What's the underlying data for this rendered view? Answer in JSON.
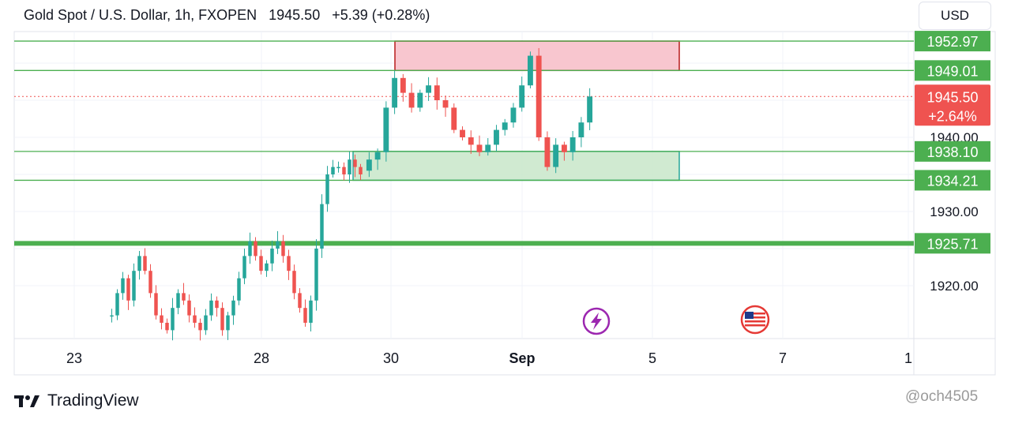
{
  "header": {
    "symbol": "Gold Spot / U.S. Dollar, 1h, FXOPEN",
    "last": "1945.50",
    "change": "+5.39 (+0.28%)"
  },
  "currency_button": "USD",
  "footer": {
    "brand": "TradingView"
  },
  "watermark": "@och4505",
  "colors": {
    "green_line": "#4caf50",
    "green_zone": "#c8e6c9",
    "red_zone": "#f8c6cf",
    "red_zone_border": "#b71c1c",
    "up": "#26a69a",
    "down": "#ef5350",
    "price_label": "#ef5350"
  },
  "chart_data": {
    "type": "candlestick",
    "title": "",
    "xlabel": "",
    "ylabel": "",
    "ylim": [
      1913.9,
      1956.3
    ],
    "y_ticks": [
      "1952.97",
      "1949.01",
      "1940.00",
      "1930.00",
      "1920.00"
    ],
    "x_ticks": [
      "23",
      "28",
      "30",
      "Sep",
      "5",
      "7",
      "1"
    ],
    "horizontal_levels": [
      {
        "price": 1952.97,
        "label": "1952.97",
        "style": "thin"
      },
      {
        "price": 1949.01,
        "label": "1949.01",
        "style": "thin"
      },
      {
        "price": 1938.1,
        "label": "1938.10",
        "style": "thin"
      },
      {
        "price": 1934.21,
        "label": "1934.21",
        "style": "thin"
      },
      {
        "price": 1925.71,
        "label": "1925.71",
        "style": "thick"
      }
    ],
    "current_price": {
      "price": 1945.5,
      "label": "1945.50",
      "change": "+2.64%"
    },
    "zones": [
      {
        "kind": "resistance",
        "from_price": 1949.01,
        "to_price": 1952.97,
        "from_x": "Aug 29",
        "to_x": "Sep 5"
      },
      {
        "kind": "support",
        "from_price": 1934.21,
        "to_price": 1938.1,
        "from_x": "Aug 29",
        "to_x": "Sep 5"
      }
    ],
    "events": [
      "lightning",
      "us-flag"
    ],
    "series": [
      {
        "segment": "Aug 24 - Aug 29",
        "start": 1916.0,
        "values": [
          1916,
          1919,
          1921,
          1918,
          1922,
          1924,
          1922,
          1919,
          1916,
          1915,
          1914,
          1917,
          1919,
          1918,
          1916,
          1915,
          1914,
          1916,
          1918,
          1917,
          1914,
          1916,
          1918,
          1921,
          1924,
          1926,
          1924,
          1922,
          1923,
          1925,
          1926,
          1924,
          1922,
          1919,
          1917,
          1915,
          1918,
          1925,
          1931,
          1935,
          1936,
          1936,
          1935,
          1937,
          1936,
          1935
        ]
      },
      {
        "segment": "Aug 30 - Sep 4",
        "start": 1935.5,
        "values": [
          1937,
          1938,
          1944,
          1948,
          1946,
          1944,
          1946,
          1947,
          1945,
          1944,
          1941,
          1940,
          1939,
          1938,
          1939,
          1941,
          1942,
          1944,
          1947,
          1951,
          1940,
          1936,
          1939,
          1938,
          1940,
          1942,
          1945.5
        ]
      }
    ]
  }
}
